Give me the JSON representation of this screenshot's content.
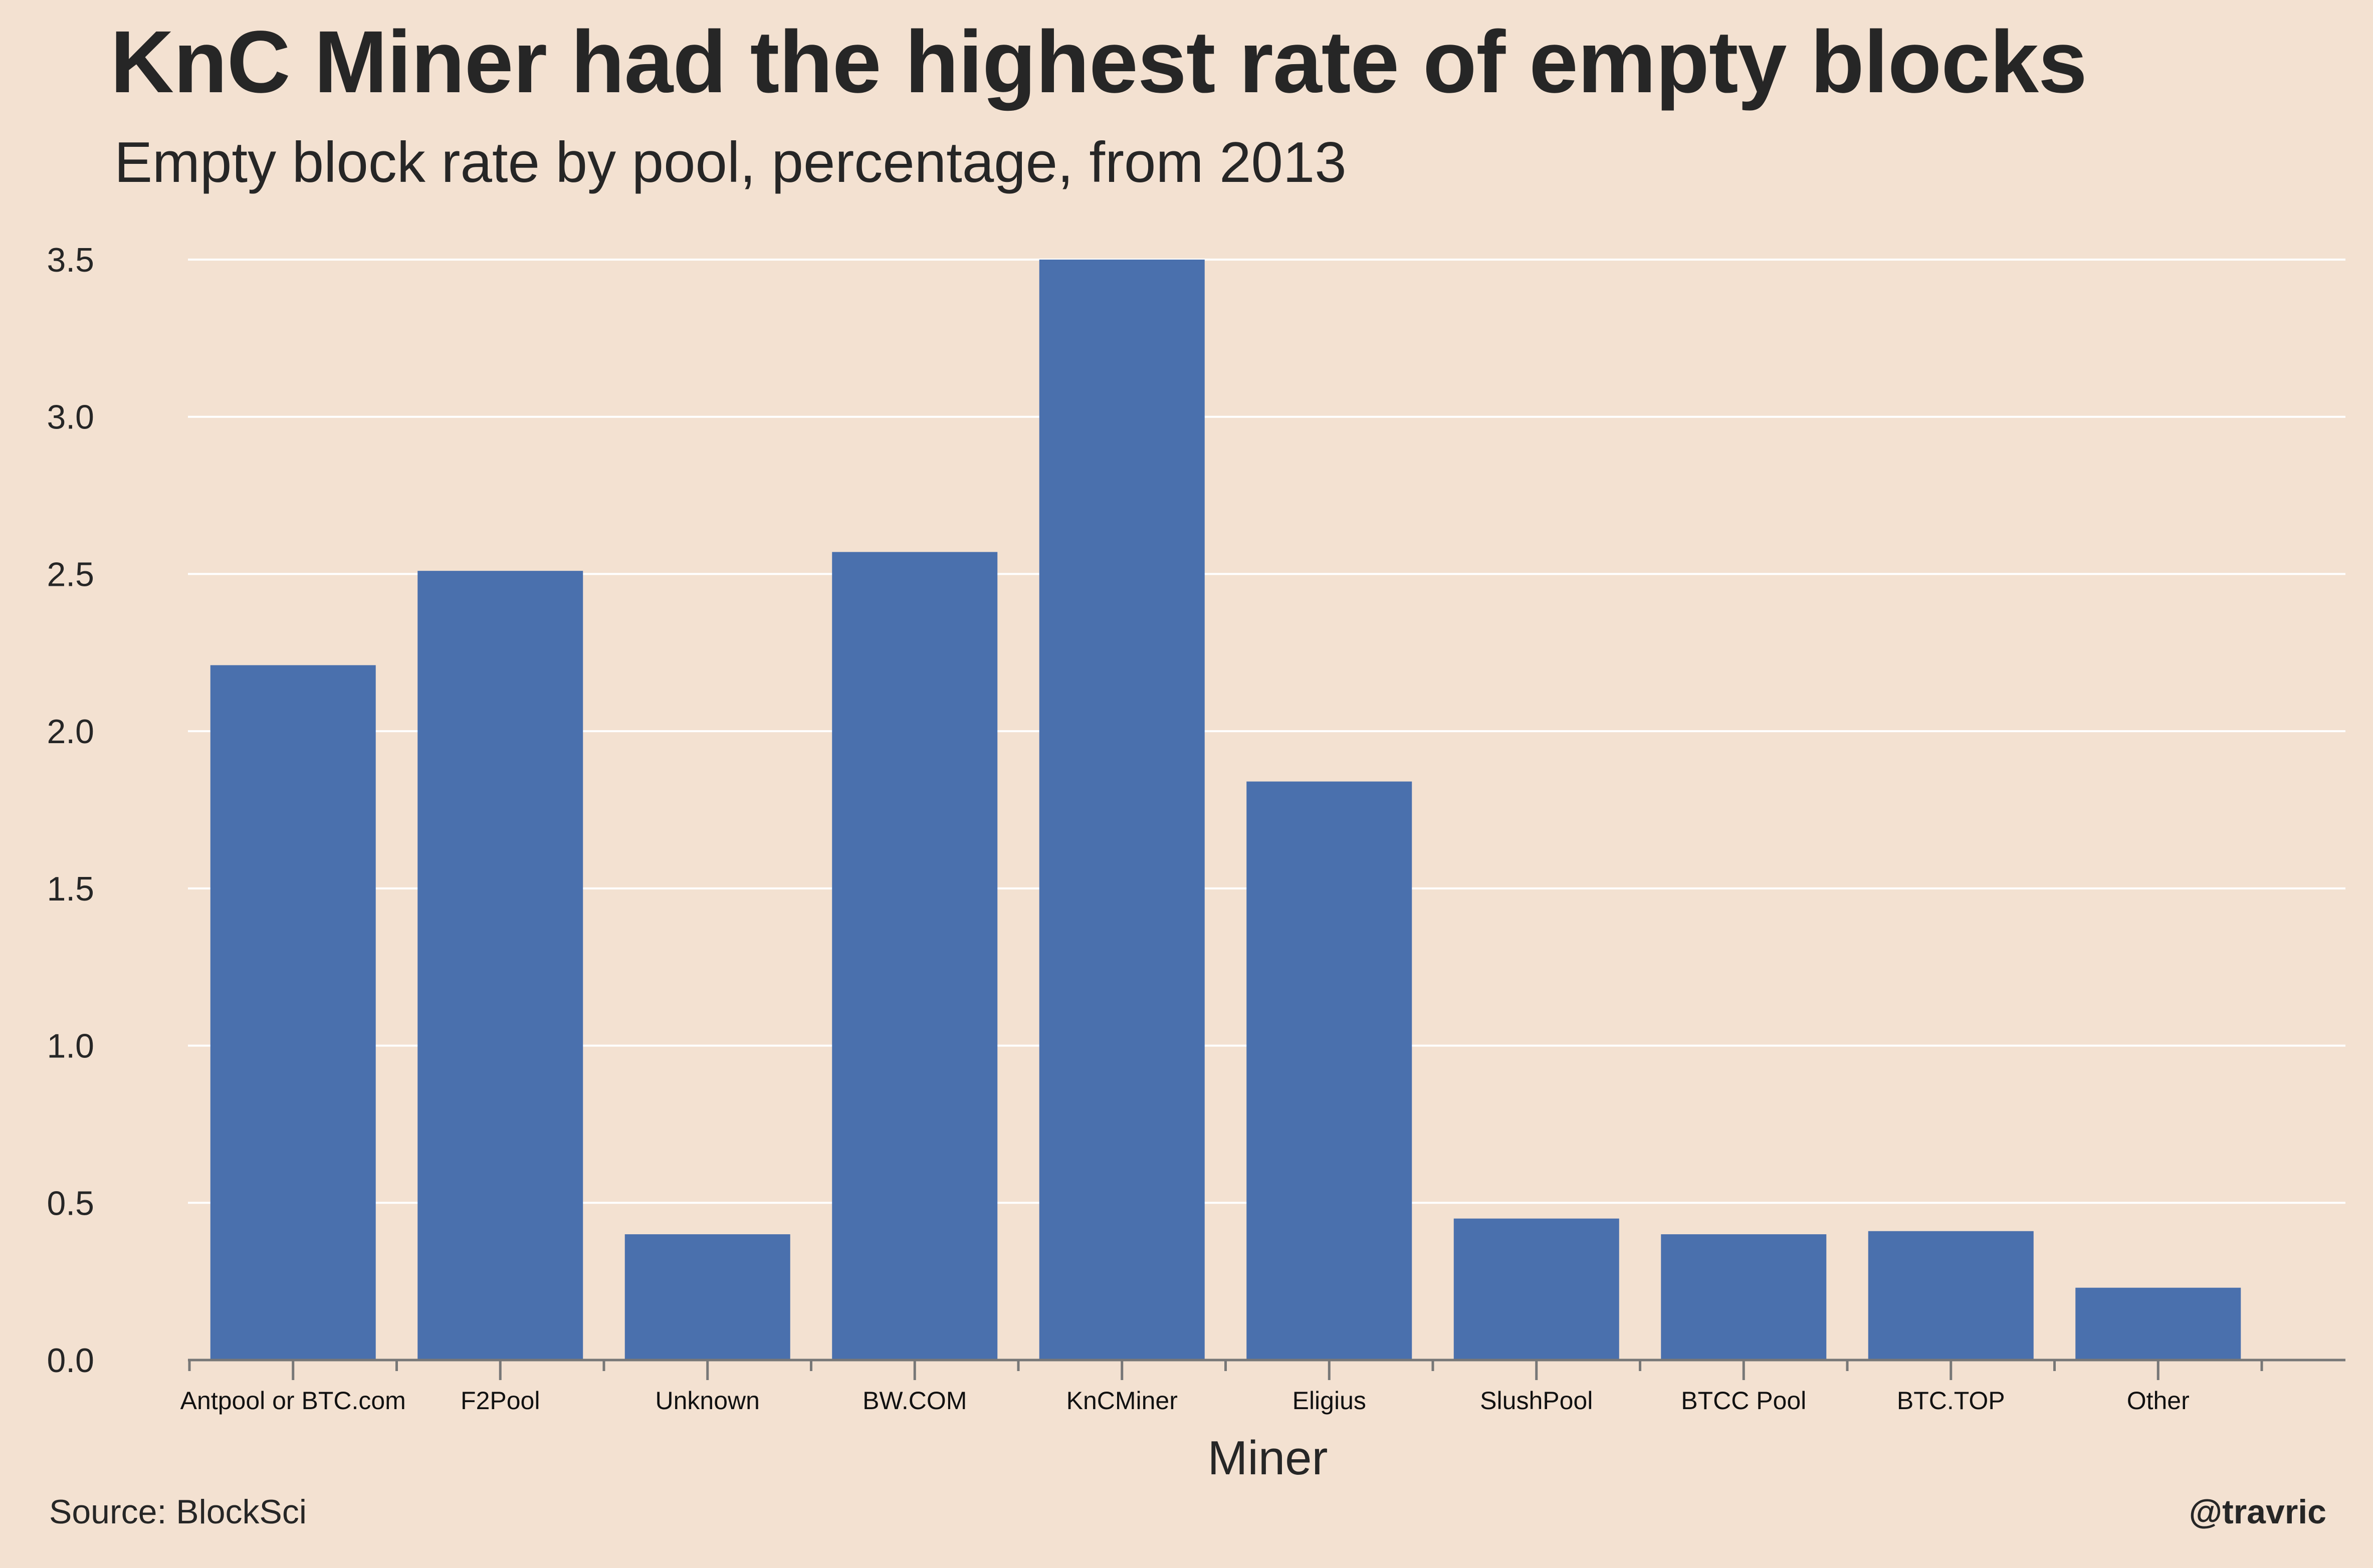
{
  "header": {
    "title": "KnC Miner had the highest rate of empty blocks",
    "subtitle": "Empty block rate by pool, percentage, from 2013"
  },
  "footer": {
    "source": "Source: BlockSci",
    "handle": "@travric"
  },
  "colors": {
    "background": "#f3e1d1",
    "bar": "#4a70ad",
    "grid": "#ffffff",
    "axis": "#777777"
  },
  "chart_data": {
    "type": "bar",
    "title": "KnC Miner had the highest rate of empty blocks",
    "subtitle": "Empty block rate by pool, percentage, from 2013",
    "xlabel": "Miner",
    "ylabel": "",
    "categories": [
      "Antpool or BTC.com",
      "F2Pool",
      "Unknown",
      "BW.COM",
      "KnCMiner",
      "Eligius",
      "SlushPool",
      "BTCC Pool",
      "BTC.TOP",
      "Other"
    ],
    "values": [
      2.21,
      2.51,
      0.4,
      2.57,
      3.5,
      1.84,
      0.45,
      0.4,
      0.41,
      0.23
    ],
    "yticks": [
      "0.0",
      "0.5",
      "1.0",
      "1.5",
      "2.0",
      "2.5",
      "3.0",
      "3.5"
    ],
    "ylim": [
      0,
      3.5
    ],
    "grid": "horizontal",
    "legend": "none"
  }
}
